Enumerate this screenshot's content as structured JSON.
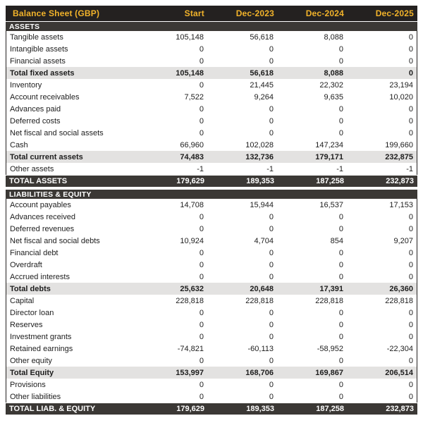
{
  "table": {
    "title": "Balance Sheet (GBP)",
    "columns": [
      "Start",
      "Dec-2023",
      "Dec-2024",
      "Dec-2025"
    ],
    "colors": {
      "title_bg": "#242120",
      "title_text": "#f2b32a",
      "band_bg": "#3b3835",
      "band_text": "#ffffff",
      "subtotal_bg": "#e3e2e1",
      "row_text": "#1d1d1d",
      "border": "#242120"
    },
    "sections": [
      {
        "header": "ASSETS",
        "rows": [
          {
            "label": "Tangible assets",
            "style": "normal",
            "values": [
              "105,148",
              "56,618",
              "8,088",
              "0"
            ]
          },
          {
            "label": "Intangible assets",
            "style": "normal",
            "values": [
              "0",
              "0",
              "0",
              "0"
            ]
          },
          {
            "label": "Financial assets",
            "style": "normal",
            "values": [
              "0",
              "0",
              "0",
              "0"
            ]
          },
          {
            "label": "Total fixed assets",
            "style": "subtotal",
            "values": [
              "105,148",
              "56,618",
              "8,088",
              "0"
            ]
          },
          {
            "label": "Inventory",
            "style": "normal",
            "values": [
              "0",
              "21,445",
              "22,302",
              "23,194"
            ]
          },
          {
            "label": "Account receivables",
            "style": "normal",
            "values": [
              "7,522",
              "9,264",
              "9,635",
              "10,020"
            ]
          },
          {
            "label": "Advances paid",
            "style": "normal",
            "values": [
              "0",
              "0",
              "0",
              "0"
            ]
          },
          {
            "label": "Deferred costs",
            "style": "normal",
            "values": [
              "0",
              "0",
              "0",
              "0"
            ]
          },
          {
            "label": "Net fiscal and social assets",
            "style": "normal",
            "values": [
              "0",
              "0",
              "0",
              "0"
            ]
          },
          {
            "label": "Cash",
            "style": "normal",
            "values": [
              "66,960",
              "102,028",
              "147,234",
              "199,660"
            ]
          },
          {
            "label": "Total current assets",
            "style": "subtotal",
            "values": [
              "74,483",
              "132,736",
              "179,171",
              "232,875"
            ]
          },
          {
            "label": "Other assets",
            "style": "normal",
            "values": [
              "-1",
              "-1",
              "-1",
              "-1"
            ]
          },
          {
            "label": "TOTAL ASSETS",
            "style": "total",
            "values": [
              "179,629",
              "189,353",
              "187,258",
              "232,873"
            ]
          }
        ]
      },
      {
        "header": "LIABILITIES & EQUITY",
        "rows": [
          {
            "label": "Account payables",
            "style": "normal",
            "values": [
              "14,708",
              "15,944",
              "16,537",
              "17,153"
            ]
          },
          {
            "label": "Advances received",
            "style": "normal",
            "values": [
              "0",
              "0",
              "0",
              "0"
            ]
          },
          {
            "label": "Deferred revenues",
            "style": "normal",
            "values": [
              "0",
              "0",
              "0",
              "0"
            ]
          },
          {
            "label": "Net fiscal and social debts",
            "style": "normal",
            "values": [
              "10,924",
              "4,704",
              "854",
              "9,207"
            ]
          },
          {
            "label": "Financial debt",
            "style": "normal",
            "values": [
              "0",
              "0",
              "0",
              "0"
            ]
          },
          {
            "label": "Overdraft",
            "style": "normal",
            "values": [
              "0",
              "0",
              "0",
              "0"
            ]
          },
          {
            "label": "Accrued interests",
            "style": "normal",
            "values": [
              "0",
              "0",
              "0",
              "0"
            ]
          },
          {
            "label": "Total debts",
            "style": "subtotal",
            "values": [
              "25,632",
              "20,648",
              "17,391",
              "26,360"
            ]
          },
          {
            "label": "Capital",
            "style": "normal",
            "values": [
              "228,818",
              "228,818",
              "228,818",
              "228,818"
            ]
          },
          {
            "label": "Director loan",
            "style": "normal",
            "values": [
              "0",
              "0",
              "0",
              "0"
            ]
          },
          {
            "label": "Reserves",
            "style": "normal",
            "values": [
              "0",
              "0",
              "0",
              "0"
            ]
          },
          {
            "label": "Investment grants",
            "style": "normal",
            "values": [
              "0",
              "0",
              "0",
              "0"
            ]
          },
          {
            "label": "Retained earnings",
            "style": "normal",
            "values": [
              "-74,821",
              "-60,113",
              "-58,952",
              "-22,304"
            ]
          },
          {
            "label": "Other equity",
            "style": "normal",
            "values": [
              "0",
              "0",
              "0",
              "0"
            ]
          },
          {
            "label": "Total Equity",
            "style": "subtotal",
            "values": [
              "153,997",
              "168,706",
              "169,867",
              "206,514"
            ]
          },
          {
            "label": "Provisions",
            "style": "normal",
            "values": [
              "0",
              "0",
              "0",
              "0"
            ]
          },
          {
            "label": "Other liabilities",
            "style": "normal",
            "values": [
              "0",
              "0",
              "0",
              "0"
            ]
          },
          {
            "label": "TOTAL LIAB. & EQUITY",
            "style": "total",
            "values": [
              "179,629",
              "189,353",
              "187,258",
              "232,873"
            ]
          }
        ]
      }
    ]
  }
}
